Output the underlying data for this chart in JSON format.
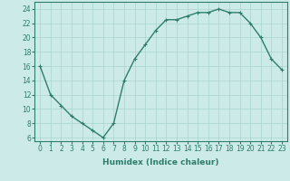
{
  "x": [
    0,
    1,
    2,
    3,
    4,
    5,
    6,
    7,
    8,
    9,
    10,
    11,
    12,
    13,
    14,
    15,
    16,
    17,
    18,
    19,
    20,
    21,
    22,
    23
  ],
  "y": [
    16,
    12,
    10.5,
    9,
    8,
    7,
    6,
    8,
    14,
    17,
    19,
    21,
    22.5,
    22.5,
    23,
    23.5,
    23.5,
    24,
    23.5,
    23.5,
    22,
    20,
    17,
    15.5
  ],
  "line_color": "#2e7d6e",
  "bg_color": "#cceae7",
  "grid_color": "#a8d5d0",
  "xlabel": "Humidex (Indice chaleur)",
  "xlim": [
    -0.5,
    23.5
  ],
  "ylim": [
    5.5,
    25.0
  ],
  "yticks": [
    6,
    8,
    10,
    12,
    14,
    16,
    18,
    20,
    22,
    24
  ],
  "xticks": [
    0,
    1,
    2,
    3,
    4,
    5,
    6,
    7,
    8,
    9,
    10,
    11,
    12,
    13,
    14,
    15,
    16,
    17,
    18,
    19,
    20,
    21,
    22,
    23
  ],
  "tick_fontsize": 5.5,
  "xlabel_fontsize": 6.5,
  "marker": "+",
  "linewidth": 1.0,
  "markersize": 3.5
}
